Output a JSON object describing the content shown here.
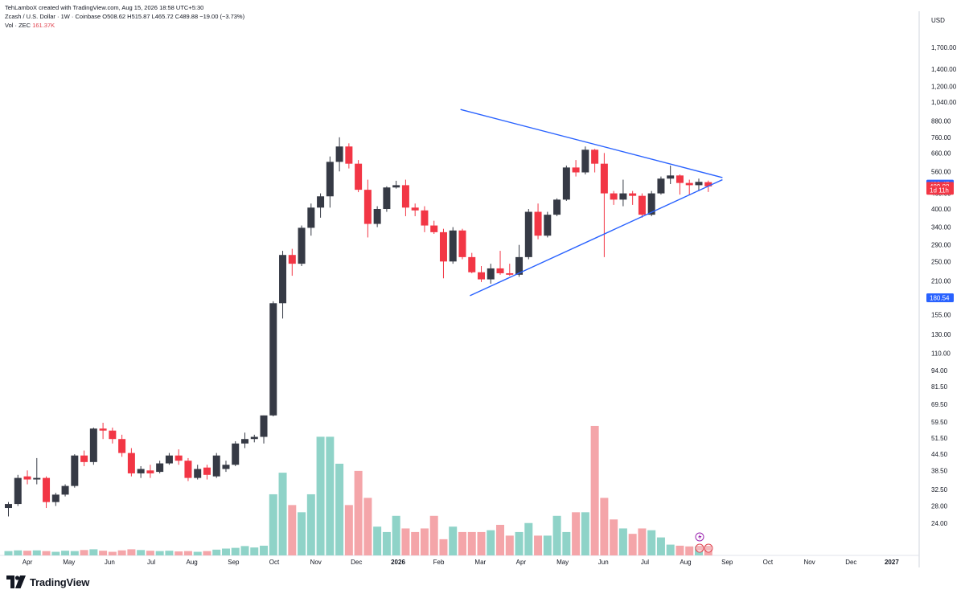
{
  "header": {
    "line1": "TehLamboX created with TradingView.com, Aug 15, 2026 18:58 UTC+5:30",
    "symbol": "Zcash / U.S. Dollar · 1W · Coinbase",
    "ohlc": "O508.62  H515.87  L465.72  C489.88  −19.00 (−3.73%)",
    "vol_label": "Vol · ZEC",
    "vol_value": "161.37K"
  },
  "brand": {
    "name": "TradingView"
  },
  "chart_data": {
    "type": "candlestick",
    "currency": "USD",
    "y_scale": "log",
    "ylim": [
      21.0,
      1900
    ],
    "price_ticks": [
      1700,
      1400,
      1200,
      1040,
      880,
      760,
      660,
      560,
      460,
      400,
      340,
      290,
      250,
      210,
      155,
      130,
      110,
      94,
      81.5,
      69.5,
      59.5,
      51.5,
      44.5,
      38.5,
      32.5,
      28,
      24
    ],
    "price_tick_labels": [
      "1,700.00",
      "1,400.00",
      "1,200.00",
      "1,040.00",
      "880.00",
      "760.00",
      "660.00",
      "560.00",
      "460.00",
      "400.00",
      "340.00",
      "290.00",
      "250.00",
      "210.00",
      "155.00",
      "130.00",
      "110.00",
      "94.00",
      "81.50",
      "69.50",
      "59.50",
      "51.50",
      "44.50",
      "38.50",
      "32.50",
      "28.00",
      "24.00"
    ],
    "price_badges": [
      {
        "value": 499.47,
        "text": "499.47",
        "color": "#2962ff"
      },
      {
        "value": 489.88,
        "text": "489.88",
        "color": "#f23645"
      },
      {
        "value": 473,
        "text": "1d 11h",
        "color": "#f23645"
      },
      {
        "value": 180.54,
        "text": "180.54",
        "color": "#2962ff"
      }
    ],
    "x_labels": [
      "Apr",
      "May",
      "Jun",
      "Jul",
      "Aug",
      "Sep",
      "Oct",
      "Nov",
      "Dec",
      "2026",
      "Feb",
      "Mar",
      "Apr",
      "May",
      "Jun",
      "Jul",
      "Aug",
      "Sep",
      "Oct",
      "Nov",
      "Dec",
      "2027"
    ],
    "x_label_index": [
      2,
      6.4,
      10.7,
      15.1,
      19.4,
      23.8,
      28.1,
      32.5,
      36.8,
      41.2,
      45.5,
      49.9,
      54.2,
      58.6,
      62.9,
      67.3,
      71.6,
      76,
      80.3,
      84.7,
      89.1,
      93.4
    ],
    "candles": [
      [
        27.5,
        29,
        25.5,
        28.5
      ],
      [
        28.5,
        37,
        28,
        36
      ],
      [
        36.5,
        38.5,
        34,
        35.5
      ],
      [
        35.5,
        43,
        34,
        36
      ],
      [
        36,
        36.5,
        27.5,
        29
      ],
      [
        29,
        31.5,
        28,
        31
      ],
      [
        31,
        34,
        30.5,
        33.5
      ],
      [
        33.5,
        44.5,
        33,
        44
      ],
      [
        44,
        46,
        40,
        41.5
      ],
      [
        41.5,
        56.5,
        40.5,
        56
      ],
      [
        56,
        59,
        51,
        55
      ],
      [
        55,
        56.5,
        49,
        51
      ],
      [
        51,
        53,
        43.5,
        45
      ],
      [
        45,
        47,
        36.5,
        37.5
      ],
      [
        37.5,
        40,
        36,
        39
      ],
      [
        38.5,
        40.5,
        36,
        37.5
      ],
      [
        38,
        42,
        37.5,
        41
      ],
      [
        41,
        45,
        40.5,
        44
      ],
      [
        44,
        46.5,
        40.5,
        42
      ],
      [
        42,
        43,
        35,
        36
      ],
      [
        36,
        40.5,
        35.5,
        39
      ],
      [
        39.5,
        40.5,
        35.5,
        37
      ],
      [
        36.5,
        45,
        36,
        44
      ],
      [
        39,
        42,
        38,
        40.5
      ],
      [
        40.5,
        50,
        40,
        49
      ],
      [
        49,
        54,
        47,
        51
      ],
      [
        51,
        53,
        49.5,
        52
      ],
      [
        52,
        63,
        49,
        63
      ],
      [
        63,
        175,
        62.5,
        172
      ],
      [
        172,
        275,
        150,
        265
      ],
      [
        265,
        280,
        220,
        245
      ],
      [
        245,
        345,
        240,
        338
      ],
      [
        338,
        420,
        315,
        405
      ],
      [
        405,
        460,
        370,
        448
      ],
      [
        448,
        640,
        405,
        610
      ],
      [
        610,
        760,
        560,
        700
      ],
      [
        700,
        720,
        575,
        600
      ],
      [
        600,
        620,
        465,
        475
      ],
      [
        475,
        520,
        310,
        350
      ],
      [
        350,
        410,
        340,
        400
      ],
      [
        400,
        490,
        390,
        485
      ],
      [
        485,
        515,
        480,
        495
      ],
      [
        495,
        520,
        375,
        405
      ],
      [
        405,
        420,
        375,
        395
      ],
      [
        395,
        410,
        325,
        345
      ],
      [
        345,
        360,
        320,
        325
      ],
      [
        325,
        335,
        215,
        250
      ],
      [
        250,
        340,
        245,
        330
      ],
      [
        330,
        335,
        255,
        260
      ],
      [
        260,
        270,
        225,
        227
      ],
      [
        227,
        240,
        208,
        213
      ],
      [
        213,
        245,
        205,
        235
      ],
      [
        235,
        275,
        222,
        225
      ],
      [
        225,
        245,
        220,
        222
      ],
      [
        222,
        290,
        218,
        260
      ],
      [
        260,
        400,
        255,
        390
      ],
      [
        390,
        420,
        305,
        315
      ],
      [
        315,
        390,
        310,
        380
      ],
      [
        380,
        440,
        375,
        435
      ],
      [
        435,
        590,
        430,
        580
      ],
      [
        580,
        620,
        535,
        555
      ],
      [
        555,
        700,
        545,
        680
      ],
      [
        680,
        685,
        555,
        600
      ],
      [
        600,
        660,
        260,
        460
      ],
      [
        460,
        470,
        415,
        435
      ],
      [
        435,
        520,
        410,
        460
      ],
      [
        460,
        470,
        415,
        450
      ],
      [
        450,
        460,
        370,
        380
      ],
      [
        380,
        470,
        375,
        460
      ],
      [
        460,
        535,
        455,
        525
      ],
      [
        525,
        590,
        500,
        540
      ],
      [
        540,
        545,
        455,
        505
      ],
      [
        505,
        520,
        455,
        495
      ],
      [
        495,
        525,
        470,
        510
      ],
      [
        508.62,
        515.87,
        465.72,
        489.88
      ]
    ],
    "volume": [
      1.2,
      1.4,
      1.3,
      1.4,
      1.2,
      1.0,
      1.3,
      1.2,
      1.5,
      1.7,
      1.3,
      1.0,
      1.4,
      1.7,
      1.5,
      1.3,
      1.2,
      1.3,
      1.1,
      1.2,
      1.0,
      1.2,
      1.6,
      1.9,
      2.1,
      2.6,
      2.2,
      2.7,
      17.0,
      23.0,
      14.0,
      12.0,
      17.0,
      33.0,
      33.0,
      25.5,
      14.0,
      23.5,
      16.0,
      8.0,
      6.5,
      11.0,
      7.5,
      6.5,
      7.5,
      11.0,
      4.5,
      8.0,
      6.5,
      6.5,
      6.5,
      7.0,
      8.5,
      5.5,
      6.5,
      9.0,
      5.5,
      5.5,
      11.0,
      6.5,
      12.0,
      12.0,
      36.0,
      16.0,
      10.0,
      7.5,
      6.0,
      7.5,
      7.0,
      5.0,
      3.0,
      2.7,
      2.5,
      2.5,
      1.6
    ],
    "volume_max": 38,
    "trendlines": [
      {
        "from": [
          47.8,
          975
        ],
        "to": [
          75.5,
          530
        ],
        "color": "#2962ff"
      },
      {
        "from": [
          48.8,
          184
        ],
        "to": [
          75.5,
          520
        ],
        "color": "#2962ff"
      }
    ],
    "colors": {
      "up": "#363a45",
      "down": "#f23645",
      "vol_up": "#8fd3c8",
      "vol_down": "#f4a5a9",
      "trend": "#2962ff"
    }
  }
}
